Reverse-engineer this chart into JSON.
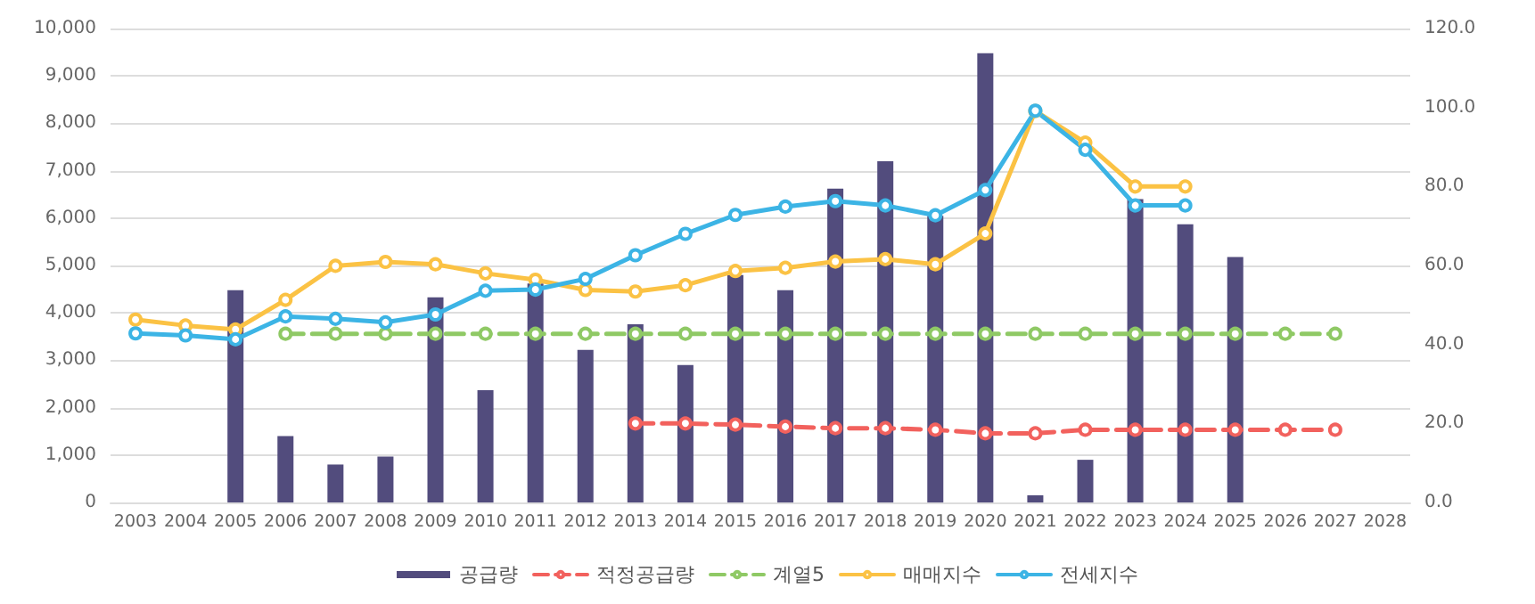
{
  "chart_data": {
    "type": "bar",
    "categories": [
      "2003",
      "2004",
      "2005",
      "2006",
      "2007",
      "2008",
      "2009",
      "2010",
      "2011",
      "2012",
      "2013",
      "2014",
      "2015",
      "2016",
      "2017",
      "2018",
      "2019",
      "2020",
      "2021",
      "2022",
      "2023",
      "2024",
      "2025",
      "2026",
      "2027",
      "2028"
    ],
    "series": [
      {
        "name": "공급량",
        "color": "#524c7d",
        "values": [
          null,
          null,
          4480,
          1400,
          800,
          970,
          4330,
          2370,
          4620,
          3220,
          3760,
          2900,
          4800,
          4480,
          6620,
          7200,
          6050,
          9480,
          150,
          900,
          6400,
          5870,
          5180,
          null,
          null,
          null
        ]
      },
      {
        "name": "적정공급량",
        "type": "line",
        "axis": "y2",
        "line_style": "dashed",
        "color": "#f2615d",
        "values": [
          null,
          null,
          null,
          null,
          null,
          null,
          null,
          null,
          null,
          null,
          20.0,
          20.0,
          19.7,
          19.2,
          18.8,
          18.8,
          18.4,
          17.5,
          17.5,
          18.4,
          18.4,
          18.4,
          18.4,
          18.4,
          18.4,
          null
        ]
      },
      {
        "name": "계열5",
        "type": "line",
        "axis": "y2",
        "line_style": "dashed",
        "color": "#8fc965",
        "values": [
          null,
          null,
          null,
          42.7,
          42.7,
          42.7,
          42.7,
          42.7,
          42.7,
          42.7,
          42.7,
          42.7,
          42.7,
          42.7,
          42.7,
          42.7,
          42.7,
          42.7,
          42.7,
          42.7,
          42.7,
          42.7,
          42.7,
          42.7,
          42.7,
          null
        ]
      },
      {
        "name": "매매지수",
        "type": "line",
        "axis": "y2",
        "line_style": "solid",
        "color": "#fbc244",
        "values": [
          46.3,
          44.8,
          43.8,
          51.3,
          59.9,
          60.9,
          60.3,
          58.0,
          56.4,
          53.8,
          53.4,
          55.0,
          58.6,
          59.4,
          61.0,
          61.6,
          60.3,
          68.1,
          99.1,
          91.1,
          80.0,
          80.0,
          null,
          null,
          null,
          null
        ]
      },
      {
        "name": "전세지수",
        "type": "line",
        "axis": "y2",
        "line_style": "solid",
        "color": "#3cb4e5",
        "values": [
          42.8,
          42.3,
          41.3,
          47.1,
          46.5,
          45.6,
          47.6,
          53.6,
          53.9,
          56.6,
          62.6,
          68.0,
          72.8,
          74.9,
          76.3,
          75.2,
          72.7,
          79.1,
          99.2,
          89.3,
          75.2,
          75.2,
          null,
          null,
          null,
          null
        ]
      }
    ],
    "ylim": [
      0,
      10000
    ],
    "yticks": [
      {
        "value": 0,
        "label": "0"
      },
      {
        "value": 1000,
        "label": "1,000"
      },
      {
        "value": 2000,
        "label": "2,000"
      },
      {
        "value": 3000,
        "label": "3,000"
      },
      {
        "value": 4000,
        "label": "4,000"
      },
      {
        "value": 5000,
        "label": "5,000"
      },
      {
        "value": 6000,
        "label": "6,000"
      },
      {
        "value": 7000,
        "label": "7,000"
      },
      {
        "value": 8000,
        "label": "8,000"
      },
      {
        "value": 9000,
        "label": "9,000"
      },
      {
        "value": 10000,
        "label": "10,000"
      }
    ],
    "y2lim": [
      0,
      120
    ],
    "y2ticks": [
      {
        "value": 0,
        "label": "0.0"
      },
      {
        "value": 20,
        "label": "20.0"
      },
      {
        "value": 40,
        "label": "40.0"
      },
      {
        "value": 60,
        "label": "60.0"
      },
      {
        "value": 80,
        "label": "80.0"
      },
      {
        "value": 100,
        "label": "100.0"
      },
      {
        "value": 120,
        "label": "120.0"
      }
    ],
    "grid": "y",
    "legend": "bottom",
    "marker": "circle"
  }
}
